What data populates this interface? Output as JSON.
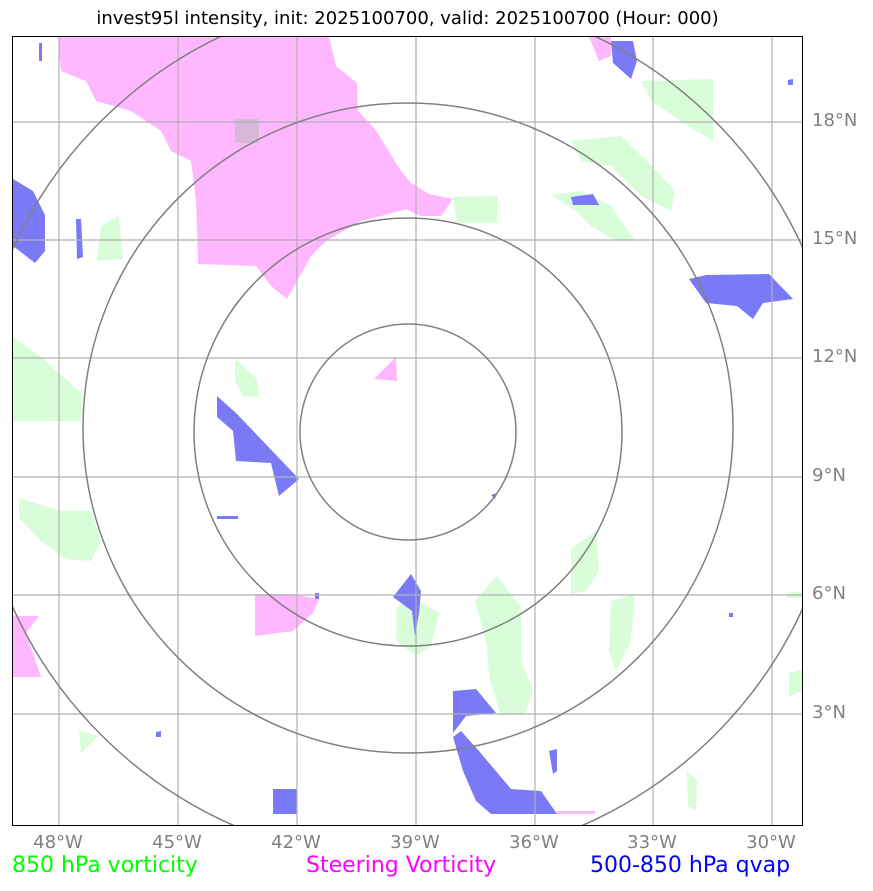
{
  "title": "invest95l intensity, init: 2025100700, valid: 2025100700 (Hour: 000)",
  "lat_labels": [
    "18°N",
    "15°N",
    "12°N",
    "9°N",
    "6°N",
    "3°N"
  ],
  "lon_labels": [
    "48°W",
    "45°W",
    "42°W",
    "39°W",
    "36°W",
    "33°W",
    "30°W"
  ],
  "legend": {
    "vort850": {
      "label": "850 hPa vorticity",
      "color": "#00ff00"
    },
    "steering": {
      "label": "Steering Vorticity",
      "color": "#ff00ff"
    },
    "qvap": {
      "label": "500-850 hPa qvap",
      "color": "#0000ff"
    }
  },
  "range_rings": {
    "center": "39°W, 10.2°N",
    "count": 4
  },
  "colors": {
    "vort850_fill": "#d9fcd9",
    "steering_fill": "#ffb8ff",
    "qvap_fill": "#7a7af7",
    "grid": "#b0b0b0",
    "ring": "#808080"
  }
}
